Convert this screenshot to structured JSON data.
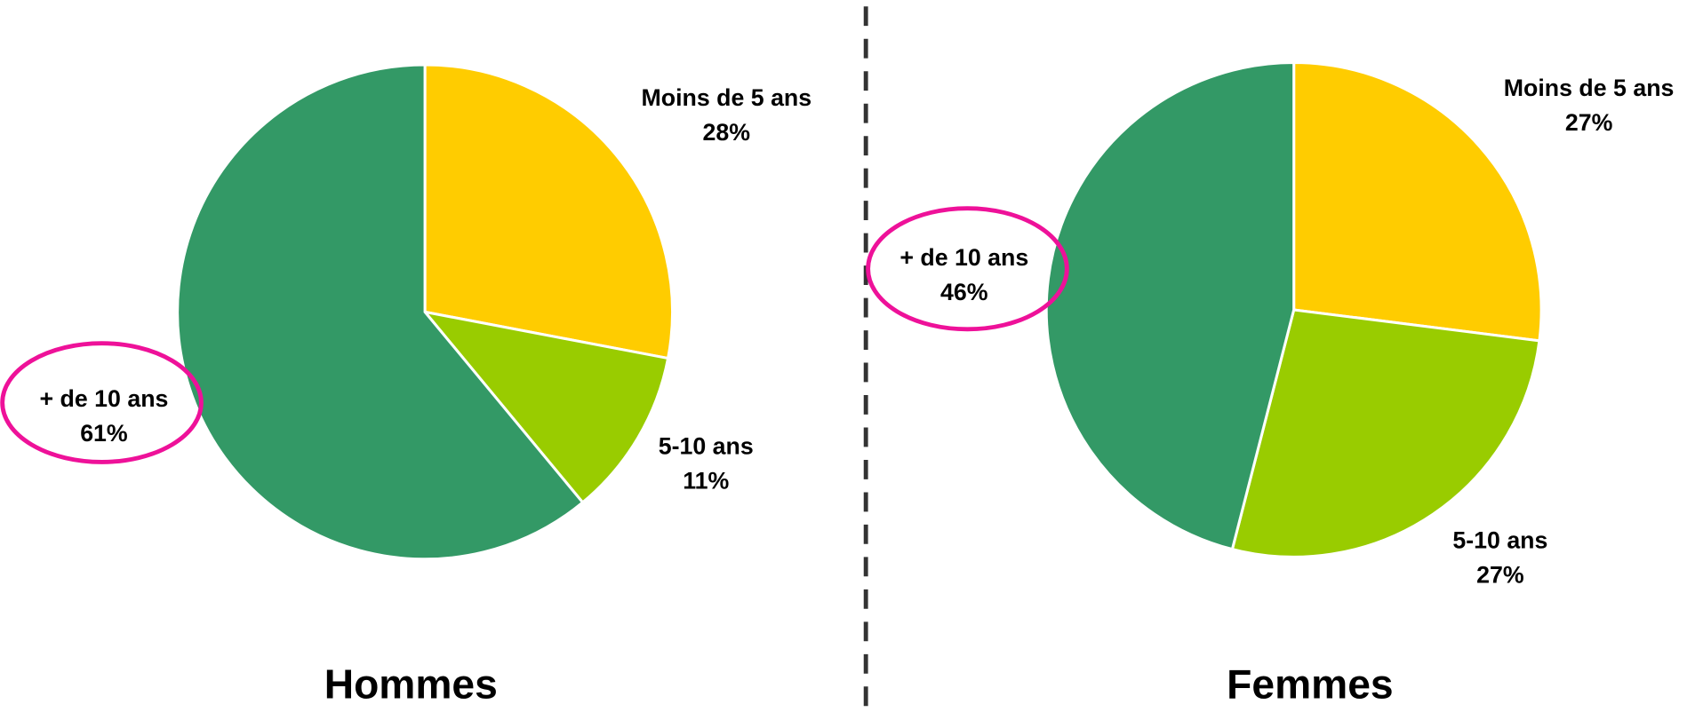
{
  "chart_data": [
    {
      "type": "pie",
      "title": "Hommes",
      "categories": [
        "Moins de 5 ans",
        "5-10 ans",
        "+ de 10 ans"
      ],
      "values": [
        28,
        11,
        61
      ],
      "value_labels": [
        "28%",
        "11%",
        "61%"
      ],
      "colors": [
        "#FFCC00",
        "#99CC00",
        "#339966"
      ]
    },
    {
      "type": "pie",
      "title": "Femmes",
      "categories": [
        "Moins de 5 ans",
        "5-10 ans",
        "+ de 10 ans"
      ],
      "values": [
        27,
        27,
        46
      ],
      "value_labels": [
        "27%",
        "27%",
        "46%"
      ],
      "colors": [
        "#FFCC00",
        "#99CC00",
        "#339966"
      ]
    }
  ]
}
